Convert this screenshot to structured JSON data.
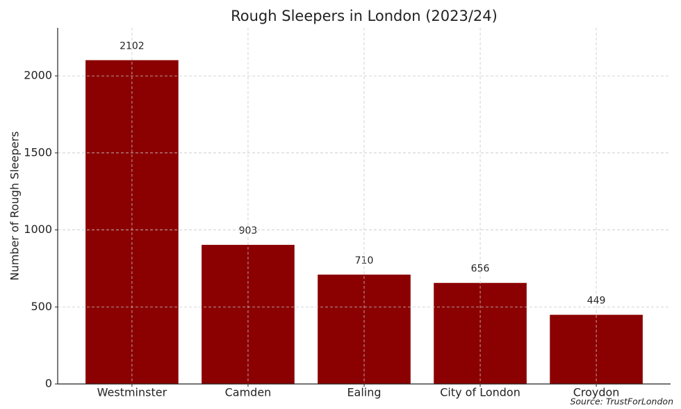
{
  "chart_data": {
    "type": "bar",
    "title": "Rough Sleepers in London (2023/24)",
    "ylabel": "Number of Rough Sleepers",
    "categories": [
      "Westminster",
      "Camden",
      "Ealing",
      "City of London",
      "Croydon"
    ],
    "values": [
      2102,
      903,
      710,
      656,
      449
    ],
    "color": "#8b0000",
    "ylim": [
      0,
      2312
    ],
    "yticks": [
      0,
      500,
      1000,
      1500,
      2000
    ],
    "grid": true,
    "source": "Source: TrustForLondon"
  }
}
